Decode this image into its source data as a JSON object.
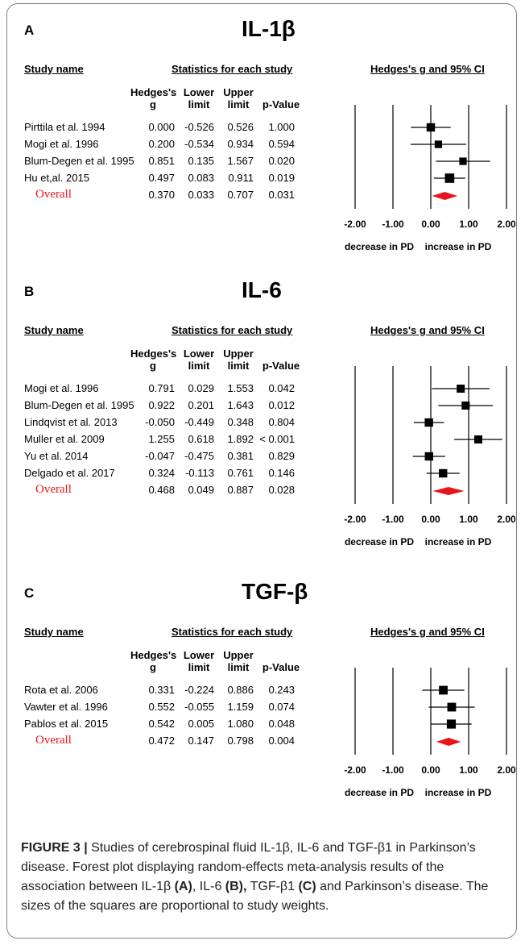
{
  "column_headers": {
    "study_name": "Study name",
    "stats_group": "Statistics for each study",
    "ci_group": "Hedges's g and 95% CI",
    "hedges": "Hedges's\ng",
    "lower": "Lower\nlimit",
    "upper": "Upper\nlimit",
    "pvalue": "p-Value"
  },
  "direction_labels": {
    "left": "decrease in PD",
    "right": "increase in PD"
  },
  "colors": {
    "overall": "#e8141b",
    "marker": "#000000",
    "frame": "#7e7e7e"
  },
  "panels": [
    {
      "letter": "A",
      "title": "IL-1β"
    },
    {
      "letter": "B",
      "title": "IL-6"
    },
    {
      "letter": "C",
      "title": "TGF-β"
    }
  ],
  "chart_data": [
    {
      "type": "forest",
      "title": "IL-1β",
      "xlim": [
        -2,
        2
      ],
      "xticks": [
        "-2.00",
        "-1.00",
        "0.00",
        "1.00",
        "2.00"
      ],
      "studies": [
        {
          "name": "Pirttila et al. 1994",
          "g": "0.000",
          "lower": "-0.526",
          "upper": "0.526",
          "p": "1.000",
          "weight": 0.55
        },
        {
          "name": "Mogi et al. 1996",
          "g": "0.200",
          "lower": "-0.534",
          "upper": "0.934",
          "p": "0.594",
          "weight": 0.4
        },
        {
          "name": "Blum-Degen et al. 1995",
          "g": "0.851",
          "lower": "0.135",
          "upper": "1.567",
          "p": "0.020",
          "weight": 0.4
        },
        {
          "name": "Hu et,al. 2015",
          "g": "0.497",
          "lower": "0.083",
          "upper": "0.911",
          "p": "0.019",
          "weight": 0.7
        }
      ],
      "overall": {
        "name": "Overall",
        "g": "0.370",
        "lower": "0.033",
        "upper": "0.707",
        "p": "0.031"
      }
    },
    {
      "type": "forest",
      "title": "IL-6",
      "xlim": [
        -2,
        2
      ],
      "xticks": [
        "-2.00",
        "-1.00",
        "0.00",
        "1.00",
        "2.00"
      ],
      "studies": [
        {
          "name": "Mogi et al. 1996",
          "g": "0.791",
          "lower": "0.029",
          "upper": "1.553",
          "p": "0.042",
          "weight": 0.5
        },
        {
          "name": "Blum-Degen et al. 1995",
          "g": "0.922",
          "lower": "0.201",
          "upper": "1.643",
          "p": "0.012",
          "weight": 0.5
        },
        {
          "name": "Lindqvist et al. 2013",
          "g": "-0.050",
          "lower": "-0.449",
          "upper": "0.348",
          "p": "0.804",
          "weight": 0.55
        },
        {
          "name": "Muller et al. 2009",
          "g": "1.255",
          "lower": "0.618",
          "upper": "1.892",
          "p": "< 0.001",
          "weight": 0.5
        },
        {
          "name": "Yu et al. 2014",
          "g": "-0.047",
          "lower": "-0.475",
          "upper": "0.381",
          "p": "0.829",
          "weight": 0.55
        },
        {
          "name": "Delgado et al. 2017",
          "g": "0.324",
          "lower": "-0.113",
          "upper": "0.761",
          "p": "0.146",
          "weight": 0.55
        }
      ],
      "overall": {
        "name": "Overall",
        "g": "0.468",
        "lower": "0.049",
        "upper": "0.887",
        "p": "0.028"
      }
    },
    {
      "type": "forest",
      "title": "TGF-β",
      "xlim": [
        -2,
        2
      ],
      "xticks": [
        "-2.00",
        "-1.00",
        "0.00",
        "1.00",
        "2.00"
      ],
      "studies": [
        {
          "name": "Rota et al. 2006",
          "g": "0.331",
          "lower": "-0.224",
          "upper": "0.886",
          "p": "0.243",
          "weight": 0.6
        },
        {
          "name": "Vawter et al. 1996",
          "g": "0.552",
          "lower": "-0.055",
          "upper": "1.159",
          "p": "0.074",
          "weight": 0.6
        },
        {
          "name": "Pablos et al. 2015",
          "g": "0.542",
          "lower": "0.005",
          "upper": "1.080",
          "p": "0.048",
          "weight": 0.65
        }
      ],
      "overall": {
        "name": "Overall",
        "g": "0.472",
        "lower": "0.147",
        "upper": "0.798",
        "p": "0.004"
      }
    }
  ],
  "caption": {
    "label": "FIGURE 3 |",
    "text_1": " Studies of cerebrospinal fluid IL-1β, IL-6 and TGF-β1 in Parkinson’s disease. Forest plot displaying random-effects meta-analysis results of the association between IL-1β ",
    "ref_a": "(A)",
    "text_2": ", IL-6 ",
    "ref_b": "(B),",
    "text_3": " TGF-β1 ",
    "ref_c": "(C)",
    "text_4": " and Parkinson’s disease. The sizes of the squares are proportional to study weights."
  }
}
